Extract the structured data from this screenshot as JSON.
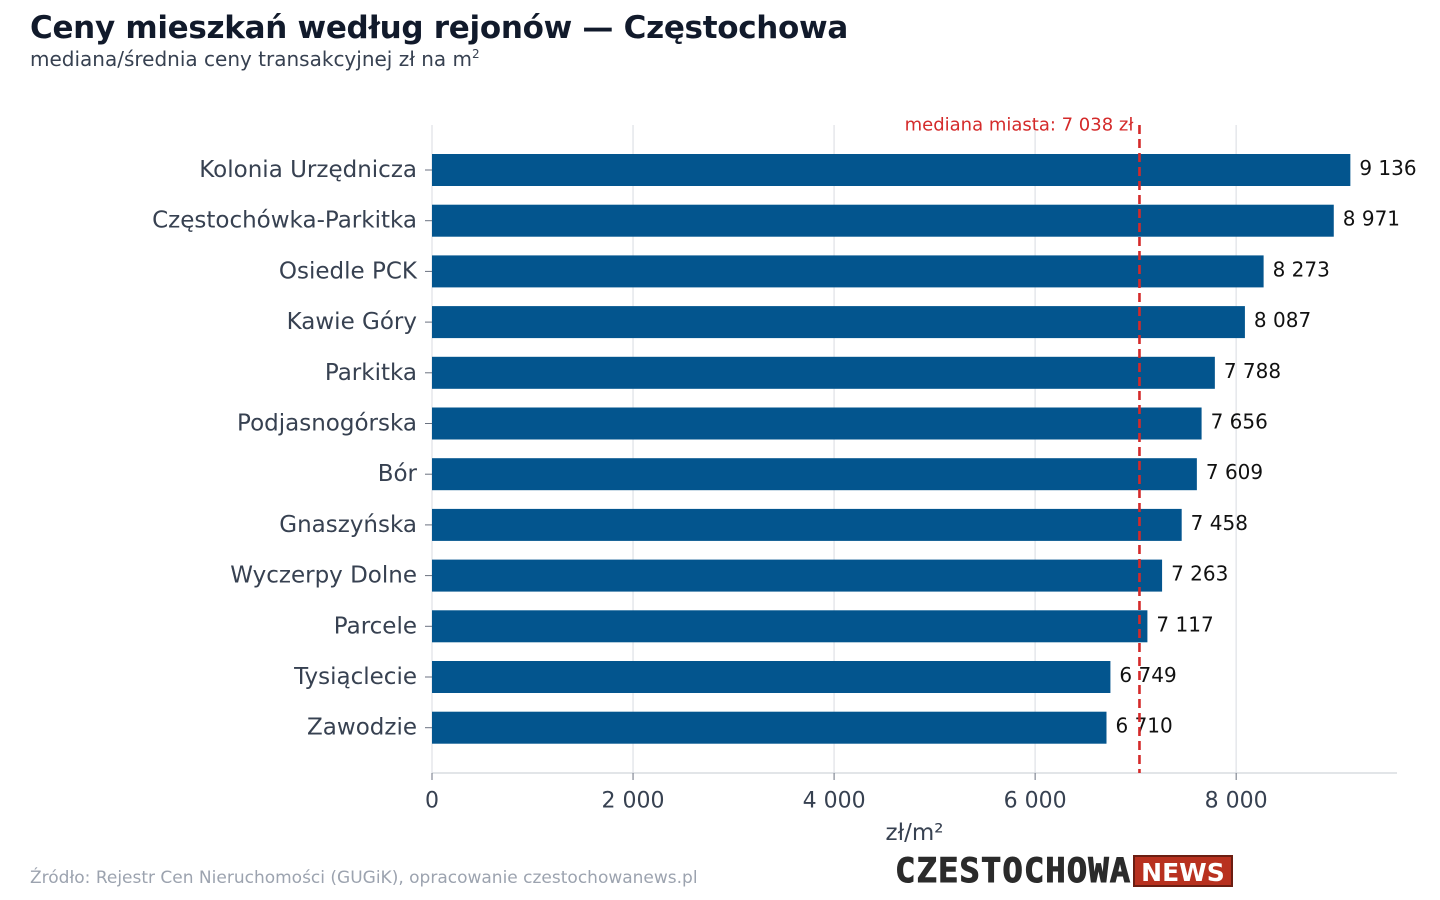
{
  "header": {
    "title": "Ceny mieszkań według rejonów — Częstochowa",
    "subtitle": "mediana/średnia ceny transakcyjnej zł na m",
    "subtitle_sup": "2"
  },
  "footer": {
    "source": "Źródło: Rejestr Cen Nieruchomości (GUGiK), opracowanie czestochowanews.pl",
    "logo_text": "CZESTOCHOWA",
    "logo_badge": "NEWS"
  },
  "colors": {
    "bar": "#03558e",
    "reference_line": "#d42a2a",
    "grid": "#e5e7eb",
    "label": "#374151"
  },
  "chart_data": {
    "type": "bar",
    "orientation": "horizontal",
    "categories": [
      "Kolonia Urzędnicza",
      "Częstochówka-Parkitka",
      "Osiedle PCK",
      "Kawie Góry",
      "Parkitka",
      "Podjasnogórska",
      "Bór",
      "Gnaszyńska",
      "Wyczerpy Dolne",
      "Parcele",
      "Tysiąclecie",
      "Zawodzie"
    ],
    "values": [
      9136,
      8971,
      8273,
      8087,
      7788,
      7656,
      7609,
      7458,
      7263,
      7117,
      6749,
      6710
    ],
    "value_labels": [
      "9 136",
      "8 971",
      "8 273",
      "8 087",
      "7 788",
      "7 656",
      "7 609",
      "7 458",
      "7 263",
      "7 117",
      "6 749",
      "6 710"
    ],
    "xlabel": "zł/m²",
    "xlim": [
      0,
      9600
    ],
    "xticks": [
      0,
      2000,
      4000,
      6000,
      8000
    ],
    "xtick_labels": [
      "0",
      "2 000",
      "4 000",
      "6 000",
      "8 000"
    ],
    "reference_line": {
      "value": 7038,
      "label": "mediana miasta: 7 038 zł"
    },
    "grid": true,
    "legend": "none"
  }
}
